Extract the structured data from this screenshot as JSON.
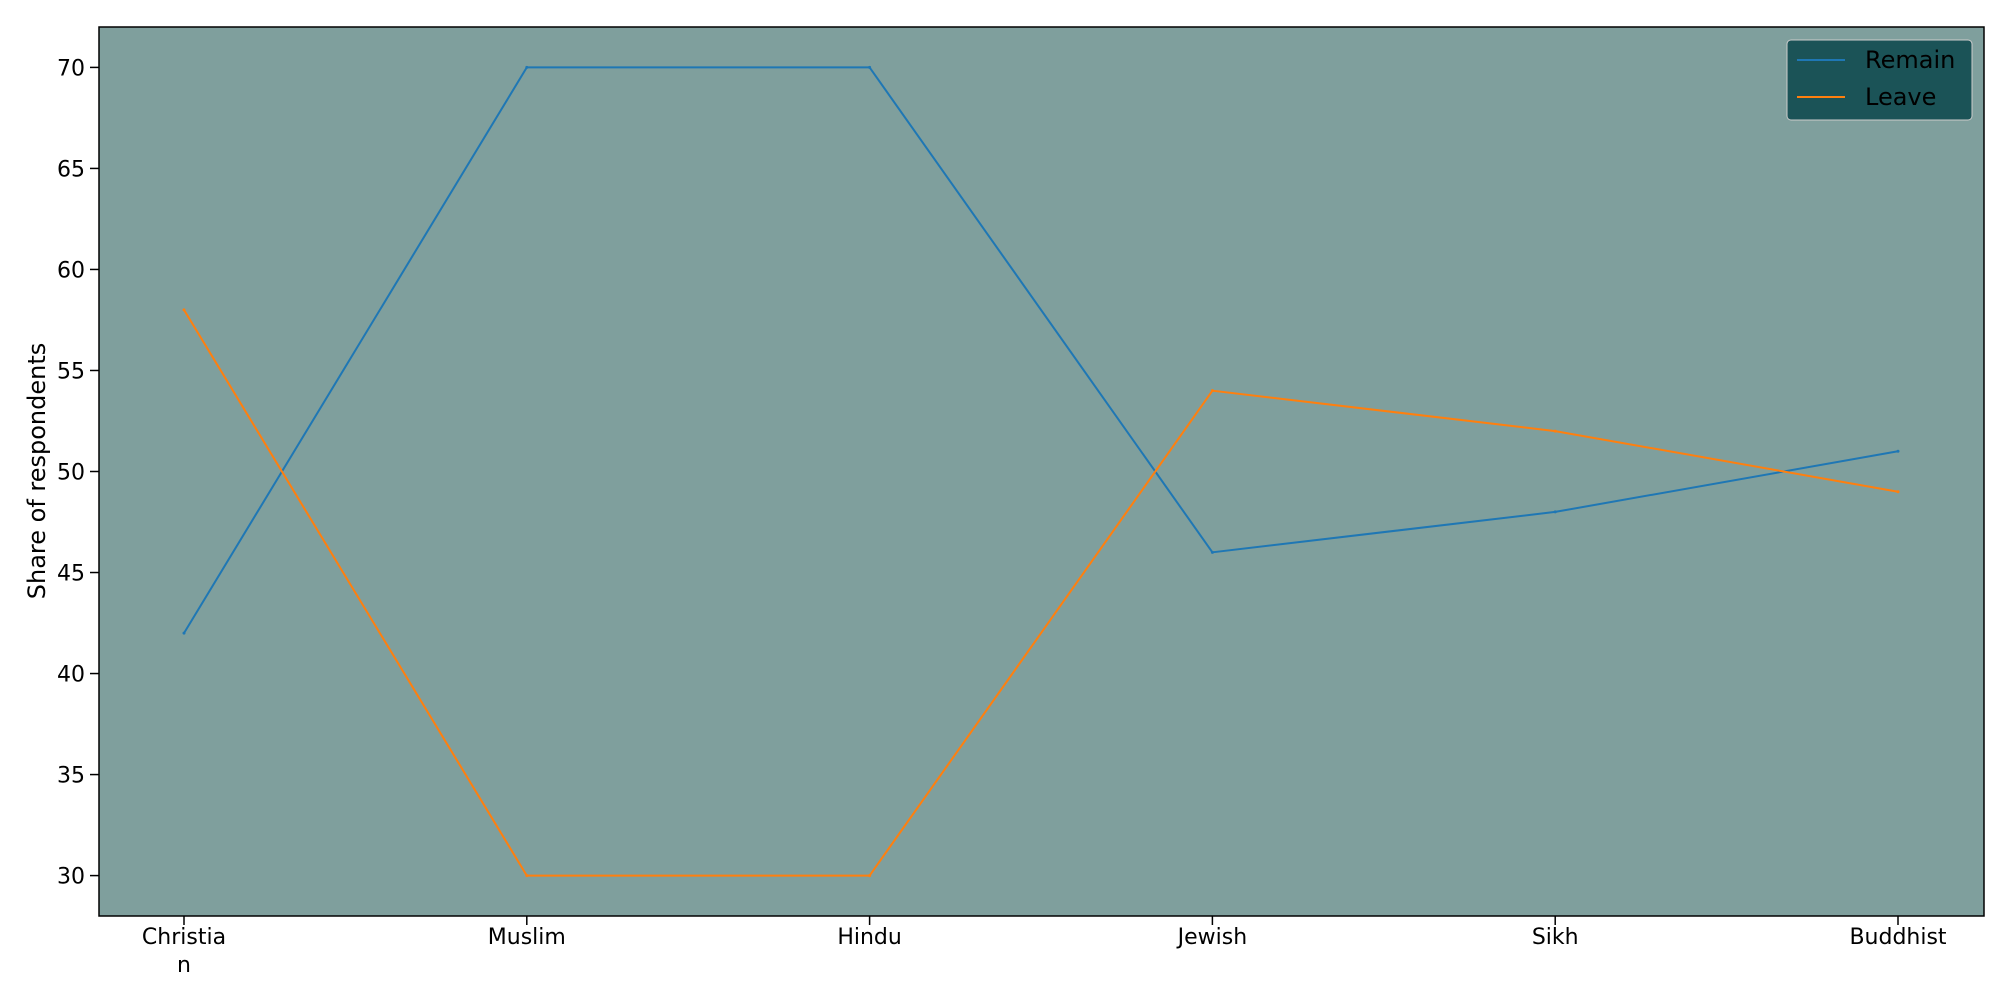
{
  "chart_data": {
    "type": "line",
    "categories": [
      "Christia\nn",
      "Muslim",
      "Hindu",
      "Jewish",
      "Sikh",
      "Buddhist"
    ],
    "series": [
      {
        "name": "Remain",
        "values": [
          42,
          70,
          70,
          46,
          48,
          51
        ],
        "color": "#1f77b4"
      },
      {
        "name": "Leave",
        "values": [
          58,
          30,
          30,
          54,
          52,
          49
        ],
        "color": "#ff7f0e"
      }
    ],
    "title": "",
    "xlabel": "",
    "ylabel": "Share of respondents",
    "ylim": [
      28,
      72
    ],
    "yticks": [
      30,
      35,
      40,
      45,
      50,
      55,
      60,
      65,
      70
    ],
    "grid": false,
    "legend_position": "top-right",
    "plot_background": "#7f9f9d",
    "legend_background": "#1b5357"
  }
}
